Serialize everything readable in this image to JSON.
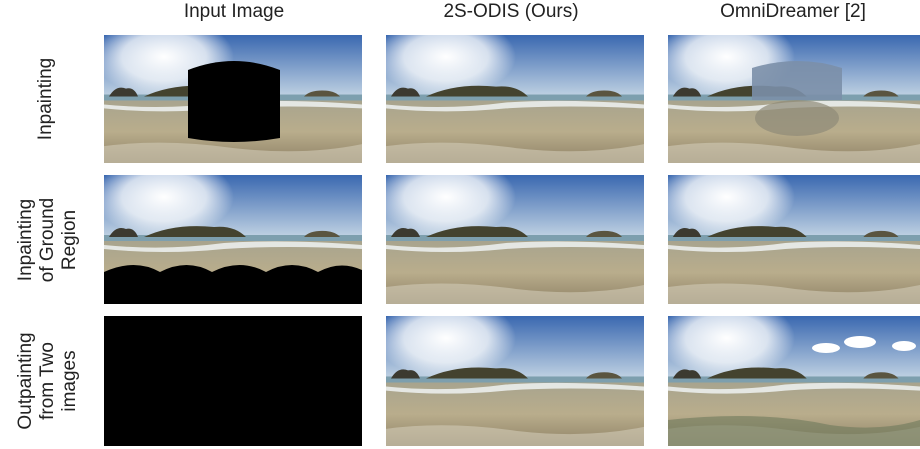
{
  "columns": [
    "Input Image",
    "2S-ODIS (Ours)",
    "OmniDreamer [2]"
  ],
  "rows": [
    {
      "label": [
        "Inpainting"
      ]
    },
    {
      "label": [
        "Inpainting",
        "of Ground",
        "Region"
      ]
    },
    {
      "label": [
        "Outpainting",
        "from Two",
        "images"
      ]
    }
  ]
}
